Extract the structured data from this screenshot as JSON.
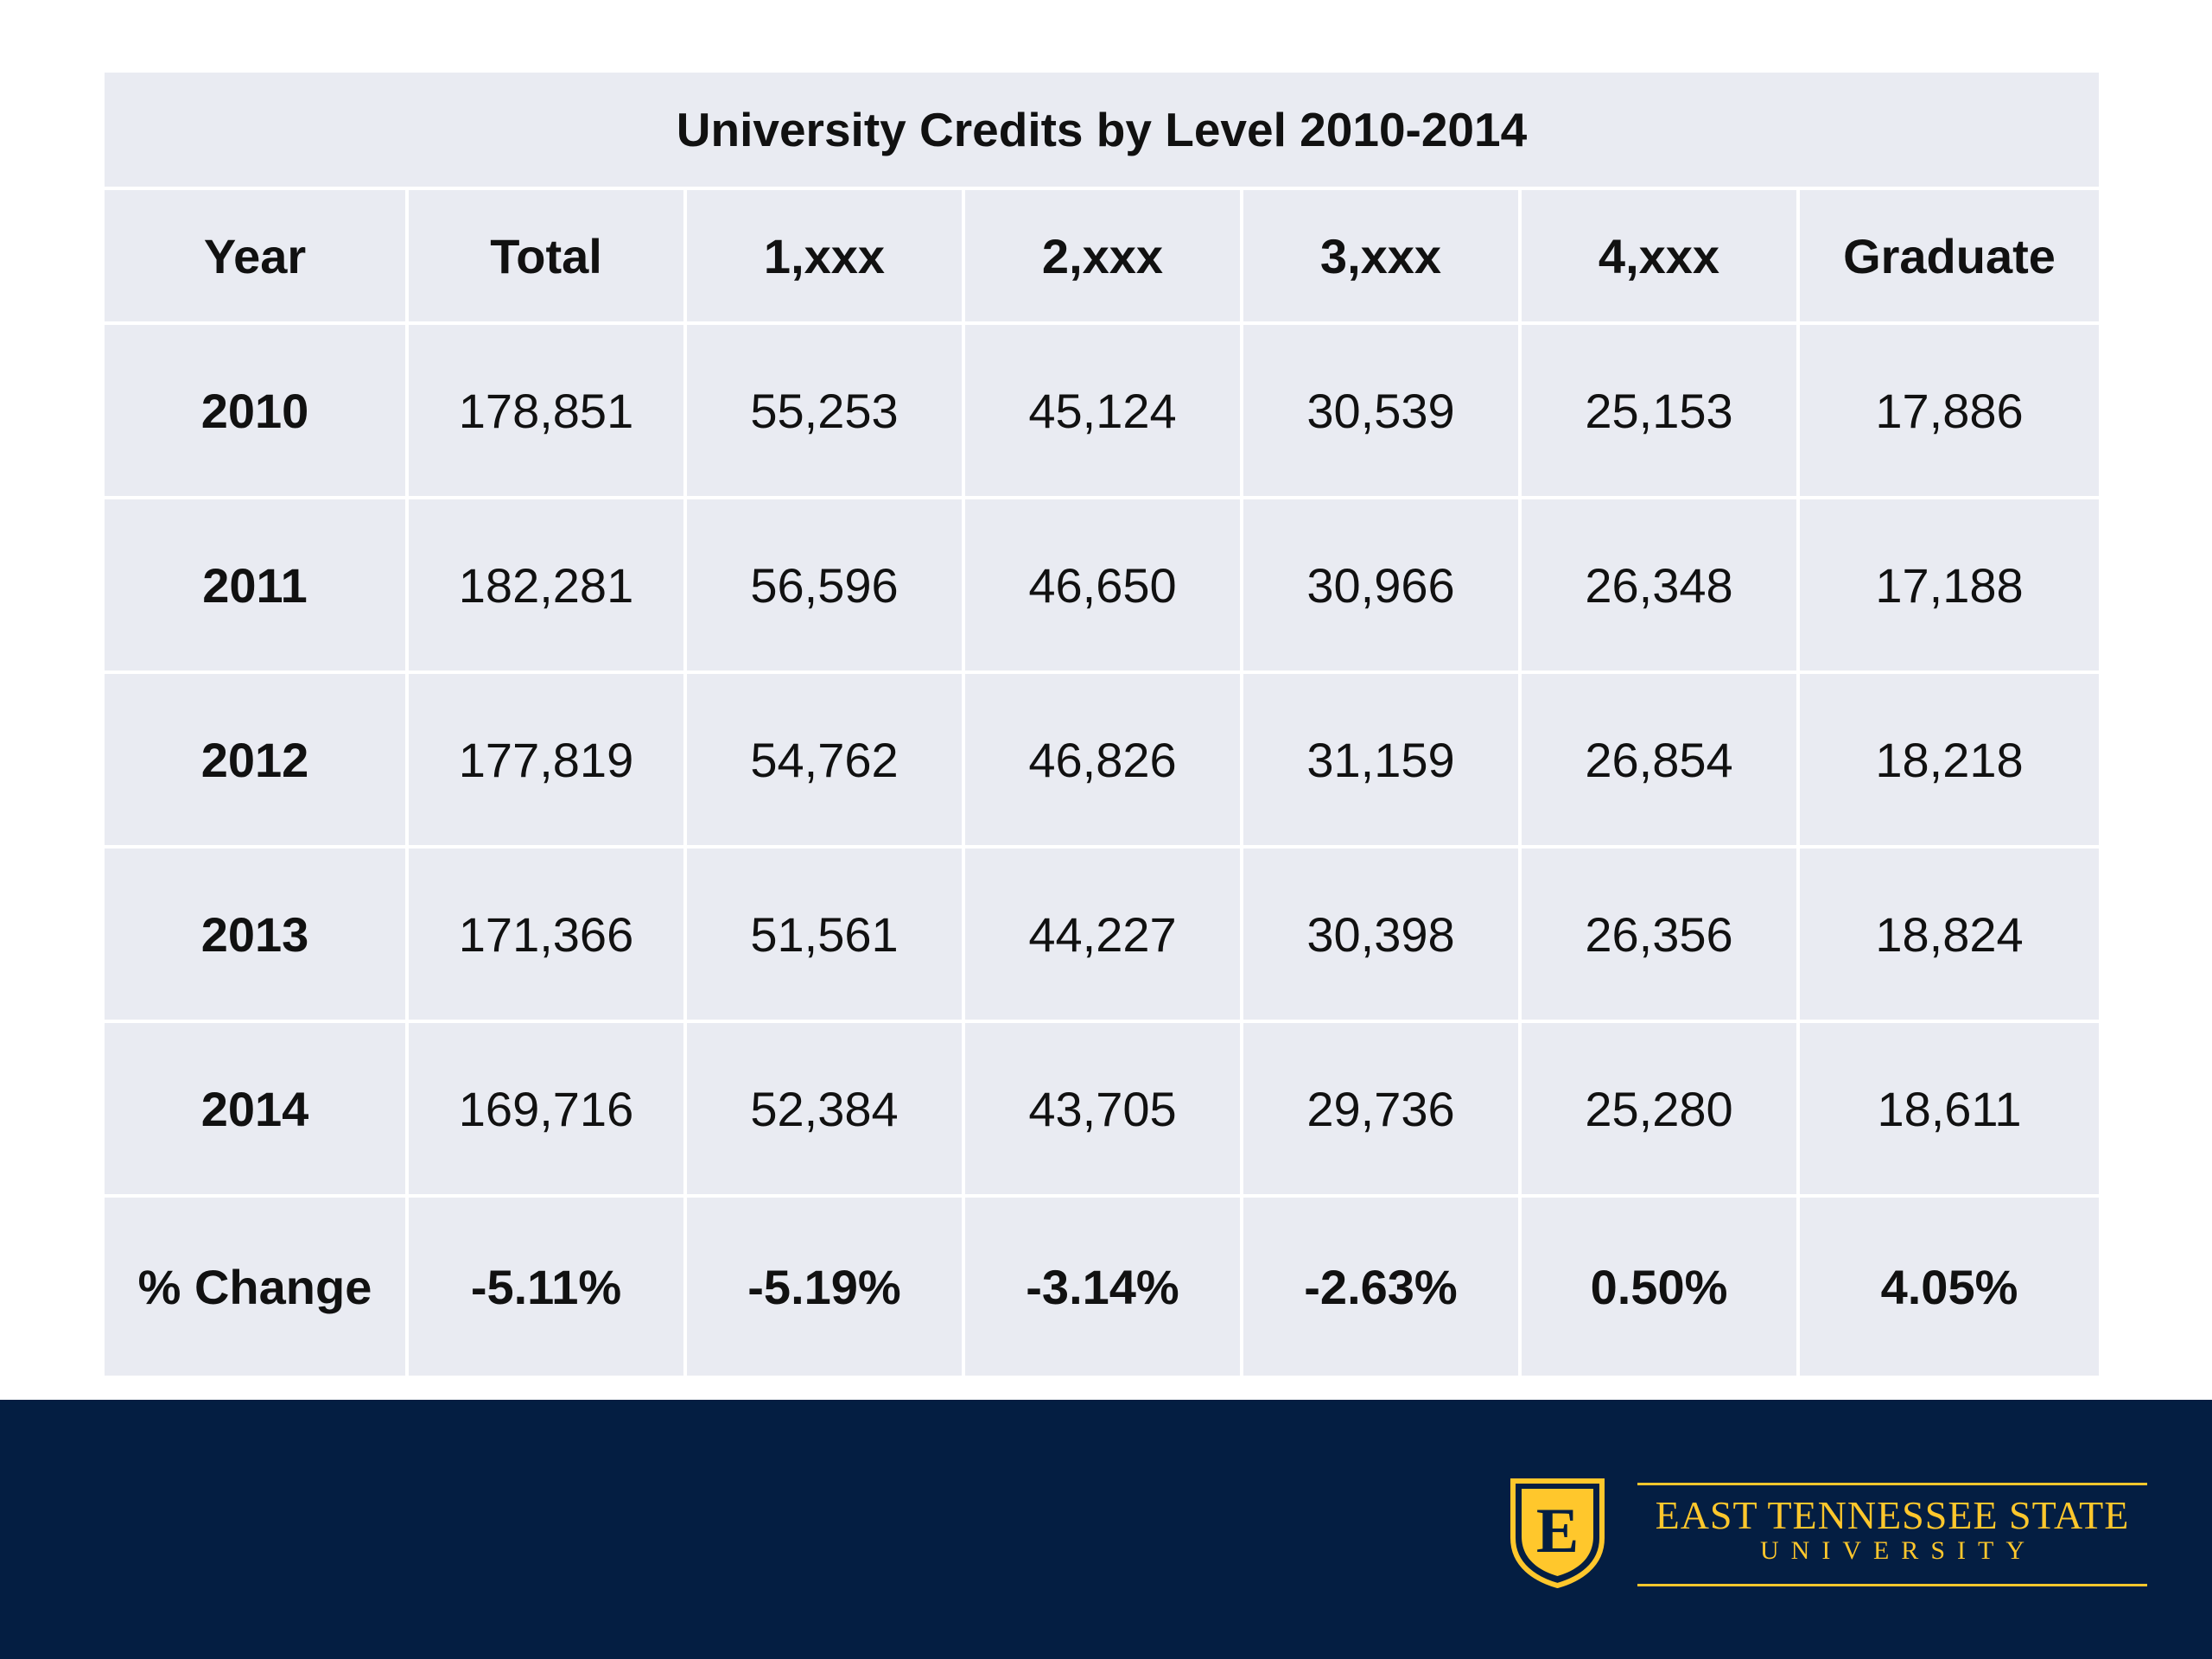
{
  "table": {
    "title": "University Credits by Level 2010-2014",
    "headers": [
      "Year",
      "Total",
      "1,xxx",
      "2,xxx",
      "3,xxx",
      "4,xxx",
      "Graduate"
    ],
    "rows": [
      [
        "2010",
        "178,851",
        "55,253",
        "45,124",
        "30,539",
        "25,153",
        "17,886"
      ],
      [
        "2011",
        "182,281",
        "56,596",
        "46,650",
        "30,966",
        "26,348",
        "17,188"
      ],
      [
        "2012",
        "177,819",
        "54,762",
        "46,826",
        "31,159",
        "26,854",
        "18,218"
      ],
      [
        "2013",
        "171,366",
        "51,561",
        "44,227",
        "30,398",
        "26,356",
        "18,824"
      ],
      [
        "2014",
        "169,716",
        "52,384",
        "43,705",
        "29,736",
        "25,280",
        "18,611"
      ]
    ],
    "change_row": [
      "% Change",
      "-5.11%",
      "-5.19%",
      "-3.14%",
      "-2.63%",
      "0.50%",
      "4.05%"
    ]
  },
  "footer": {
    "logo_name": "EAST TENNESSEE STATE",
    "logo_sub": "UNIVERSITY",
    "shield_letter": "E"
  },
  "colors": {
    "footer_bg": "#041e42",
    "logo_gold": "#ffc72c",
    "cell_bg": "#e9ebf2"
  },
  "icons": {
    "logo": "etsu-shield-icon"
  }
}
